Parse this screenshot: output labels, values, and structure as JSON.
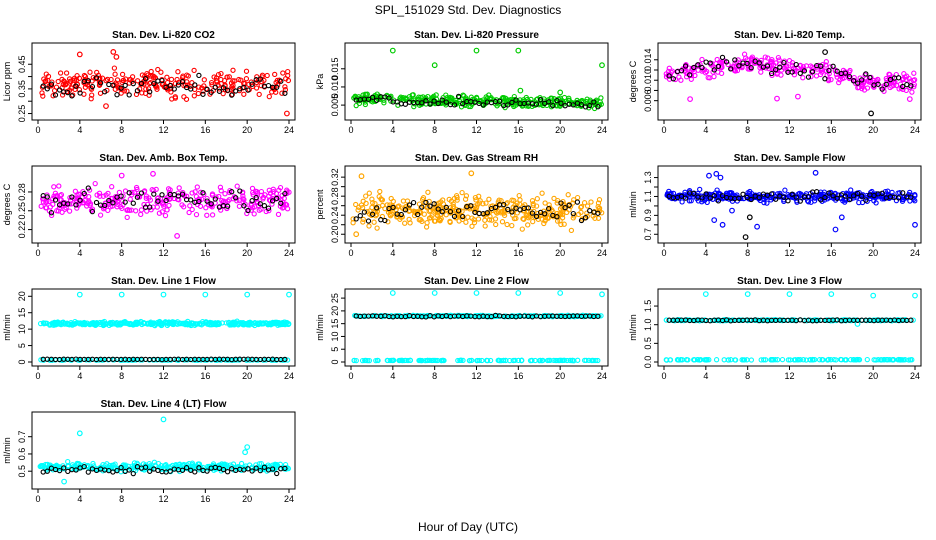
{
  "figure": {
    "title": "SPL_151029  Std. Dev. Diagnostics",
    "xlabel": "Hour of Day (UTC)"
  },
  "colors": {
    "red": "#ff0000",
    "green": "#00cc00",
    "magenta": "#ff00ff",
    "orange": "#ffa500",
    "blue": "#0000ff",
    "cyan": "#00ffff",
    "black": "#000000"
  },
  "chart_data": [
    {
      "type": "scatter",
      "title": "Stan. Dev. Li-820 CO2",
      "ylabel": "Licor ppm",
      "xlim": [
        0,
        24
      ],
      "xticks": [
        0,
        4,
        8,
        12,
        16,
        20,
        24
      ],
      "ylim": [
        0.24,
        0.52
      ],
      "yticks": [
        0.25,
        0.3,
        0.35,
        0.4,
        0.45
      ],
      "ytick_labels": [
        "0.25",
        "",
        "0.35",
        "",
        "0.45"
      ],
      "series": [
        {
          "color": "red",
          "base": 0.37,
          "spread": 0.04,
          "count": 260,
          "outliers": [
            [
              4.0,
              0.49
            ],
            [
              7.2,
              0.5
            ],
            [
              7.5,
              0.48
            ],
            [
              23.8,
              0.25
            ],
            [
              6.5,
              0.28
            ]
          ]
        },
        {
          "color": "black",
          "base": 0.36,
          "spread": 0.03,
          "count": 60,
          "outliers": []
        }
      ]
    },
    {
      "type": "scatter",
      "title": "Stan. Dev. Li-820 Pressure",
      "ylabel": "kPa",
      "xlim": [
        0,
        24
      ],
      "xticks": [
        0,
        4,
        8,
        12,
        16,
        20,
        24
      ],
      "ylim": [
        0.002,
        0.021
      ],
      "yticks": [
        0.005,
        0.01,
        0.015
      ],
      "ytick_labels": [
        "0.005",
        "0.010",
        "0.015"
      ],
      "series": [
        {
          "color": "green",
          "base": 0.0068,
          "spread": 0.0012,
          "count": 320,
          "trend": -6e-05,
          "outliers": [
            [
              4.0,
              0.02
            ],
            [
              8.0,
              0.016
            ],
            [
              12.0,
              0.02
            ],
            [
              16.0,
              0.02
            ],
            [
              16.2,
              0.009
            ],
            [
              24.0,
              0.016
            ],
            [
              20.0,
              0.0085
            ]
          ]
        },
        {
          "color": "black",
          "base": 0.0066,
          "spread": 0.0008,
          "count": 60,
          "trend": -6e-05,
          "outliers": []
        }
      ]
    },
    {
      "type": "scatter",
      "title": "Stan. Dev. Li-820 Temp.",
      "ylabel": "degrees C",
      "xlim": [
        0,
        24
      ],
      "xticks": [
        0,
        4,
        8,
        12,
        16,
        20,
        24
      ],
      "ylim": [
        0.003,
        0.0165
      ],
      "yticks": [
        0.006,
        0.008,
        0.01,
        0.012,
        0.014
      ],
      "ytick_labels": [
        "0.006",
        "",
        "0.010",
        "",
        "0.014"
      ],
      "series": [
        {
          "color": "magenta",
          "base": 0.0112,
          "spread": 0.0013,
          "count": 280,
          "hump": 0.0018,
          "outliers": [
            [
              2.5,
              0.0063
            ],
            [
              12.8,
              0.0068
            ],
            [
              10.8,
              0.0064
            ],
            [
              23.5,
              0.0063
            ]
          ]
        },
        {
          "color": "black",
          "base": 0.0112,
          "spread": 0.0011,
          "count": 60,
          "hump": 0.0018,
          "outliers": [
            [
              19.8,
              0.0035
            ],
            [
              15.4,
              0.0155
            ]
          ]
        }
      ]
    },
    {
      "type": "scatter",
      "title": "Stan. Dev. Amb. Box Temp.",
      "ylabel": "degrees C",
      "xlim": [
        0,
        24
      ],
      "xticks": [
        0,
        4,
        8,
        12,
        16,
        20,
        24
      ],
      "ylim": [
        0.205,
        0.315
      ],
      "yticks": [
        0.22,
        0.25,
        0.28
      ],
      "ytick_labels": [
        "0.22",
        "0.25",
        "0.28"
      ],
      "series": [
        {
          "color": "magenta",
          "base": 0.266,
          "spread": 0.017,
          "count": 300,
          "outliers": [
            [
              11.0,
              0.309
            ],
            [
              13.3,
              0.21
            ],
            [
              8.0,
              0.306
            ]
          ]
        },
        {
          "color": "black",
          "base": 0.266,
          "spread": 0.014,
          "count": 60,
          "outliers": []
        }
      ]
    },
    {
      "type": "scatter",
      "title": "Stan. Dev. Gas Stream RH",
      "ylabel": "percent",
      "xlim": [
        0,
        24
      ],
      "xticks": [
        0,
        4,
        8,
        12,
        16,
        20,
        24
      ],
      "ylim": [
        0.19,
        0.335
      ],
      "yticks": [
        0.2,
        0.22,
        0.24,
        0.26,
        0.28,
        0.3,
        0.32
      ],
      "ytick_labels": [
        "0.20",
        "",
        "0.24",
        "",
        "0.28",
        "",
        "0.32"
      ],
      "series": [
        {
          "color": "orange",
          "base": 0.248,
          "spread": 0.024,
          "count": 360,
          "outliers": [
            [
              1.0,
              0.322
            ],
            [
              11.5,
              0.328
            ],
            [
              0.5,
              0.2
            ]
          ]
        },
        {
          "color": "black",
          "base": 0.25,
          "spread": 0.018,
          "count": 60,
          "outliers": []
        }
      ]
    },
    {
      "type": "scatter",
      "title": "Stan. Dev. Sample Flow",
      "ylabel": "ml/min",
      "xlim": [
        0,
        24
      ],
      "xticks": [
        0,
        4,
        8,
        12,
        16,
        20,
        24
      ],
      "ylim": [
        0.65,
        1.38
      ],
      "yticks": [
        0.7,
        0.8,
        0.9,
        1.0,
        1.1,
        1.2,
        1.3
      ],
      "ytick_labels": [
        "0.7",
        "",
        "0.9",
        "",
        "1.1",
        "",
        "1.3"
      ],
      "series": [
        {
          "color": "blue",
          "base": 1.1,
          "spread": 0.045,
          "count": 320,
          "outliers": [
            [
              4.3,
              1.32
            ],
            [
              5.0,
              1.34
            ],
            [
              5.4,
              1.3
            ],
            [
              14.5,
              1.35
            ],
            [
              4.8,
              0.85
            ],
            [
              5.6,
              0.8
            ],
            [
              8.9,
              0.78
            ],
            [
              6.5,
              0.95
            ],
            [
              17.0,
              0.88
            ],
            [
              24.0,
              0.8
            ],
            [
              16.4,
              0.75
            ]
          ]
        },
        {
          "color": "black",
          "base": 1.1,
          "spread": 0.04,
          "count": 60,
          "outliers": [
            [
              7.8,
              0.67
            ],
            [
              8.2,
              0.88
            ]
          ]
        }
      ]
    },
    {
      "type": "scatter",
      "title": "Stan. Dev. Line 1 Flow",
      "ylabel": "ml/min",
      "xlim": [
        0,
        24
      ],
      "xticks": [
        0,
        4,
        8,
        12,
        16,
        20,
        24
      ],
      "ylim": [
        0,
        21
      ],
      "yticks": [
        0,
        5,
        10,
        15,
        20
      ],
      "ytick_labels": [
        "0",
        "5",
        "10",
        "15",
        "20"
      ],
      "series": [
        {
          "color": "cyan",
          "base": 11.7,
          "spread": 0.4,
          "count": 360,
          "outliers": [
            [
              4.0,
              20.5
            ],
            [
              8.0,
              20.5
            ],
            [
              12.0,
              20.5
            ],
            [
              16.0,
              20.5
            ],
            [
              20.0,
              20.5
            ],
            [
              24.0,
              20.5
            ]
          ]
        },
        {
          "color": "cyan",
          "base": 0.6,
          "spread": 0.05,
          "count": 120,
          "outliers": []
        },
        {
          "color": "black",
          "base": 0.8,
          "spread": 0.05,
          "count": 60,
          "outliers": []
        }
      ]
    },
    {
      "type": "scatter",
      "title": "Stan. Dev. Line 2 Flow",
      "ylabel": "ml/min",
      "xlim": [
        0,
        24
      ],
      "xticks": [
        0,
        4,
        8,
        12,
        16,
        20,
        24
      ],
      "ylim": [
        0,
        27
      ],
      "yticks": [
        0,
        5,
        10,
        15,
        20,
        25
      ],
      "ytick_labels": [
        "0",
        "5",
        "10",
        "15",
        "20",
        "25"
      ],
      "series": [
        {
          "color": "cyan",
          "base": 18.0,
          "spread": 0.2,
          "count": 240,
          "outliers": [
            [
              4.0,
              27.0
            ],
            [
              8.0,
              27.0
            ],
            [
              12.0,
              27.0
            ],
            [
              16.0,
              27.0
            ],
            [
              20.0,
              27.0
            ],
            [
              24.0,
              26.5
            ]
          ]
        },
        {
          "color": "cyan",
          "base": 0.6,
          "spread": 0.05,
          "count": 120,
          "outliers": []
        },
        {
          "color": "black",
          "base": 17.9,
          "spread": 0.2,
          "count": 60,
          "outliers": []
        }
      ]
    },
    {
      "type": "scatter",
      "title": "Stan. Dev. Line 3 Flow",
      "ylabel": "ml/min",
      "xlim": [
        0,
        24
      ],
      "xticks": [
        0,
        4,
        8,
        12,
        16,
        20,
        24
      ],
      "ylim": [
        0,
        1.85
      ],
      "yticks": [
        0.0,
        0.5,
        1.0,
        1.5
      ],
      "ytick_labels": [
        "0.0",
        "0.5",
        "1.0",
        "1.5"
      ],
      "series": [
        {
          "color": "cyan",
          "base": 1.12,
          "spread": 0.01,
          "count": 200,
          "outliers": [
            [
              4.0,
              1.82
            ],
            [
              8.0,
              1.82
            ],
            [
              12.0,
              1.82
            ],
            [
              16.0,
              1.82
            ],
            [
              20.0,
              1.78
            ],
            [
              24.0,
              1.78
            ],
            [
              18.5,
              1.02
            ]
          ]
        },
        {
          "color": "cyan",
          "base": 0.06,
          "spread": 0.005,
          "count": 120,
          "outliers": []
        },
        {
          "color": "black",
          "base": 1.12,
          "spread": 0.01,
          "count": 60,
          "outliers": []
        }
      ]
    },
    {
      "type": "scatter",
      "title": "Stan. Dev. Line 4 (LT) Flow",
      "ylabel": "ml/min",
      "xlim": [
        0,
        24
      ],
      "xticks": [
        0,
        4,
        8,
        12,
        16,
        20,
        24
      ],
      "ylim": [
        0.42,
        0.82
      ],
      "yticks": [
        0.5,
        0.6,
        0.7
      ],
      "ytick_labels": [
        "0.5",
        "0.6",
        "0.7"
      ],
      "series": [
        {
          "color": "cyan",
          "base": 0.525,
          "spread": 0.017,
          "count": 300,
          "outliers": [
            [
              4.0,
              0.72
            ],
            [
              12.0,
              0.8
            ],
            [
              20.0,
              0.64
            ],
            [
              19.8,
              0.61
            ],
            [
              2.5,
              0.44
            ]
          ]
        },
        {
          "color": "black",
          "base": 0.51,
          "spread": 0.015,
          "count": 60,
          "outliers": []
        }
      ]
    }
  ]
}
